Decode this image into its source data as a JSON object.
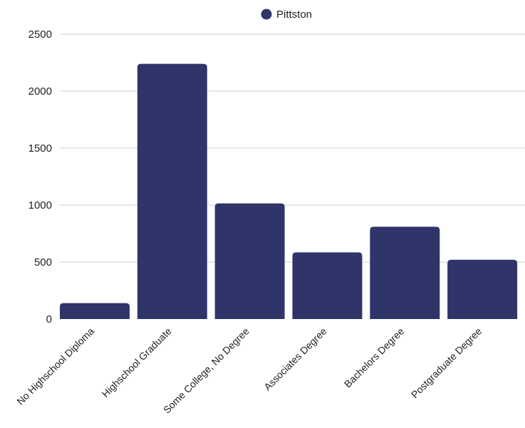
{
  "chart_data": {
    "type": "bar",
    "categories": [
      "No Highschool Diploma",
      "Highschool Graduate",
      "Some College, No Degree",
      "Associates Degree",
      "Bachelors Degree",
      "Postgraduate Degree"
    ],
    "series": [
      {
        "name": "Pittston",
        "color": "#2f3569",
        "values": [
          140,
          2240,
          1015,
          585,
          810,
          520
        ]
      }
    ],
    "yticks": [
      "0",
      "500",
      "1000",
      "1500",
      "2000",
      "2500"
    ],
    "ylim": [
      0,
      2500
    ],
    "grid": true,
    "legend_position": "top-center"
  }
}
